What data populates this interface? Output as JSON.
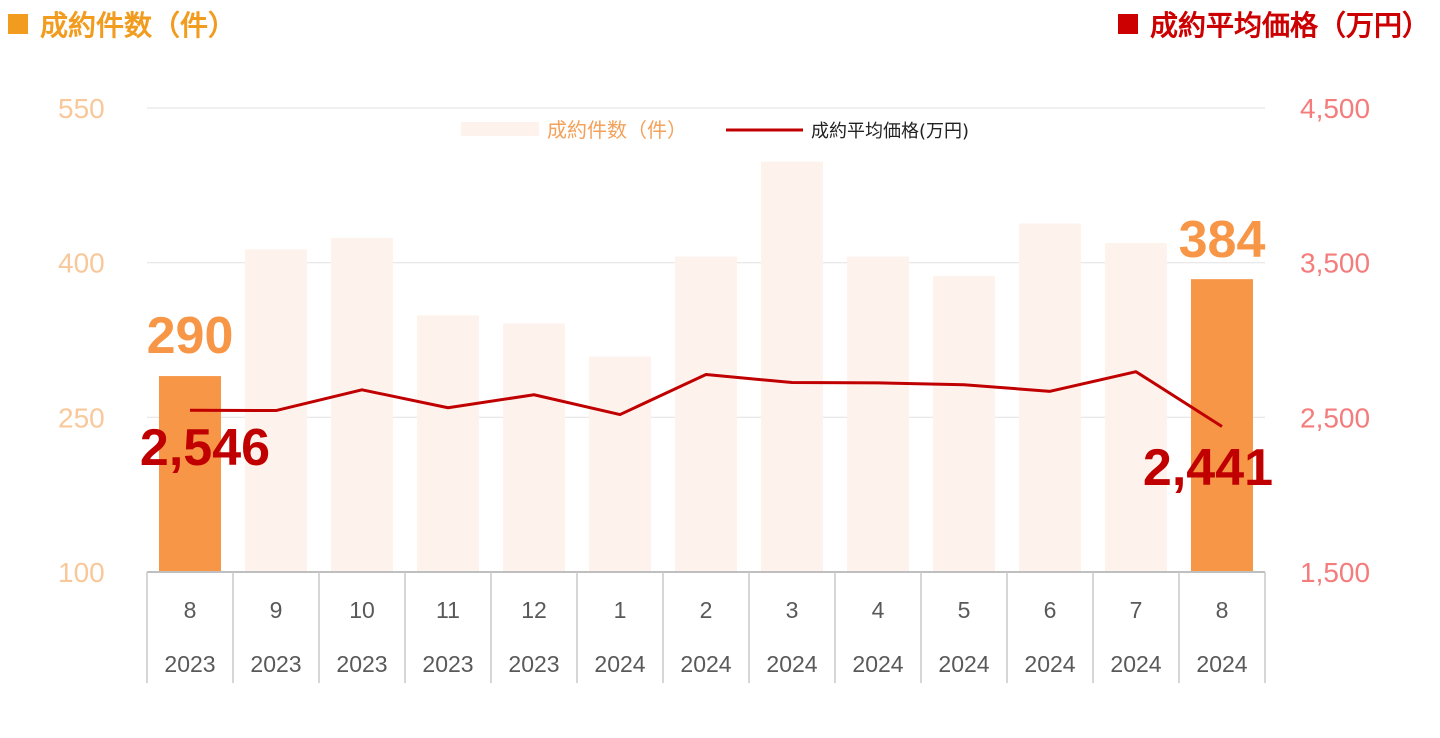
{
  "header": {
    "left_title": "成約件数（件）",
    "right_title": "成約平均価格（万円）",
    "left_color": "#f29c1f",
    "right_color": "#cc0000"
  },
  "chart_data": {
    "type": "bar",
    "categories": [
      {
        "month": "8",
        "year": "2023"
      },
      {
        "month": "9",
        "year": "2023"
      },
      {
        "month": "10",
        "year": "2023"
      },
      {
        "month": "11",
        "year": "2023"
      },
      {
        "month": "12",
        "year": "2023"
      },
      {
        "month": "1",
        "year": "2024"
      },
      {
        "month": "2",
        "year": "2024"
      },
      {
        "month": "3",
        "year": "2024"
      },
      {
        "month": "4",
        "year": "2024"
      },
      {
        "month": "5",
        "year": "2024"
      },
      {
        "month": "6",
        "year": "2024"
      },
      {
        "month": "7",
        "year": "2024"
      },
      {
        "month": "8",
        "year": "2024"
      }
    ],
    "series": [
      {
        "name": "成約件数（件）",
        "type": "bar",
        "axis": "left",
        "values": [
          290,
          413,
          424,
          349,
          341,
          309,
          406,
          498,
          406,
          387,
          438,
          419,
          384
        ],
        "color": "#fdf3ec",
        "highlight_color": "#f79646",
        "highlight_indices": [
          0,
          12
        ]
      },
      {
        "name": "成約平均価格(万円)",
        "type": "line",
        "axis": "right",
        "values": [
          2546,
          2544,
          2678,
          2562,
          2646,
          2518,
          2777,
          2725,
          2723,
          2711,
          2668,
          2795,
          2441
        ],
        "color": "#c00000"
      }
    ],
    "y_left": {
      "ticks": [
        "550",
        "400",
        "250",
        "100"
      ],
      "range": [
        100,
        550
      ],
      "tick_values": [
        550,
        400,
        250,
        100
      ],
      "color": "#f9c89a"
    },
    "y_right": {
      "ticks": [
        "4,500",
        "3,500",
        "2,500",
        "1,500"
      ],
      "range": [
        1500,
        4500
      ],
      "tick_values": [
        4500,
        3500,
        2500,
        1500
      ],
      "color": "#f47c7c"
    },
    "data_labels": [
      {
        "text": "290",
        "series": 0,
        "index": 0,
        "color": "#f79646"
      },
      {
        "text": "384",
        "series": 0,
        "index": 12,
        "color": "#f79646"
      },
      {
        "text": "2,546",
        "series": 1,
        "index": 0,
        "color": "#c00000"
      },
      {
        "text": "2,441",
        "series": 1,
        "index": 12,
        "color": "#c00000"
      }
    ],
    "legend": {
      "placement": "top-center"
    },
    "grid": true
  }
}
